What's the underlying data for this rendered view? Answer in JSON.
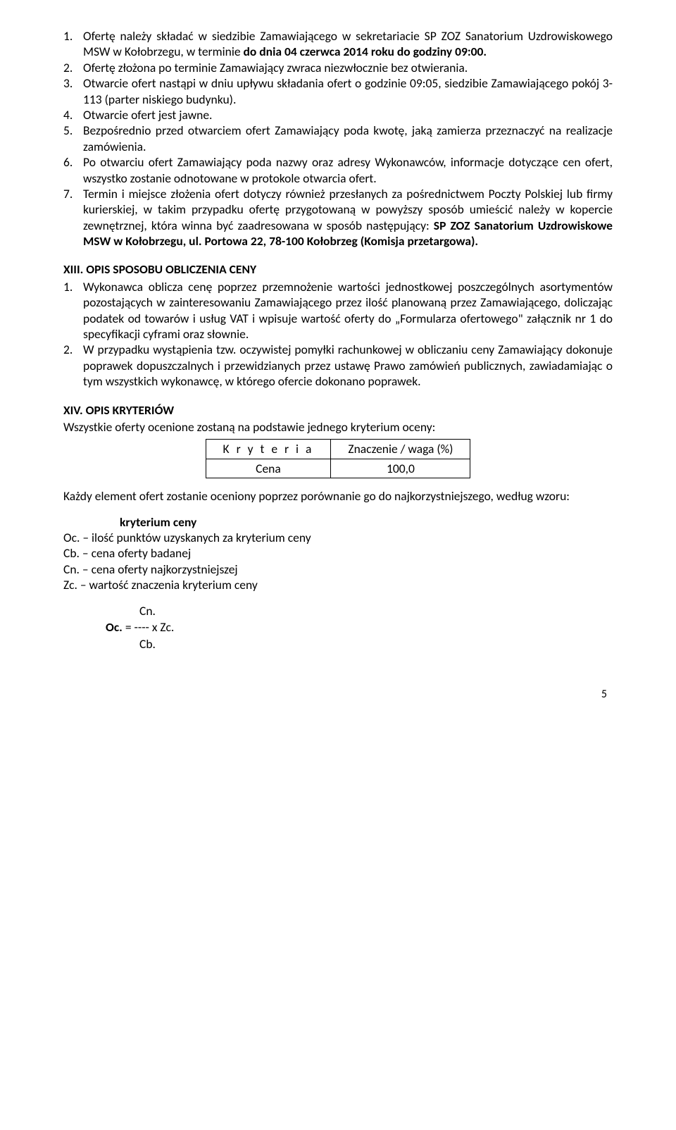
{
  "list1": {
    "items": [
      {
        "num": "1.",
        "html": "Ofertę należy składać w siedzibie Zamawiającego w sekretariacie SP ZOZ Sanatorium Uzdrowiskowego MSW w Kołobrzegu, w terminie <b>do dnia 04 czerwca 2014 roku do godziny 09:00.</b>"
      },
      {
        "num": "2.",
        "html": "Ofertę złożona po terminie Zamawiający zwraca niezwłocznie bez otwierania."
      },
      {
        "num": "3.",
        "html": "Otwarcie ofert nastąpi w dniu upływu składania ofert o godzinie 09:05, siedzibie Zamawiającego pokój 3-113 (parter niskiego budynku)."
      },
      {
        "num": "4.",
        "html": "Otwarcie ofert jest jawne."
      },
      {
        "num": "5.",
        "html": "Bezpośrednio przed otwarciem ofert Zamawiający poda kwotę, jaką zamierza przeznaczyć na realizacje zamówienia."
      },
      {
        "num": "6.",
        "html": "Po otwarciu ofert Zamawiający poda nazwy oraz adresy Wykonawców, informacje dotyczące cen ofert, wszystko zostanie odnotowane w protokole otwarcia ofert."
      },
      {
        "num": "7.",
        "html": "Termin i miejsce złożenia ofert dotyczy również przesłanych za pośrednictwem Poczty Polskiej lub firmy kurierskiej, w takim przypadku ofertę przygotowaną w powyższy sposób umieścić należy w kopercie zewnętrznej, która winna być zaadresowana w sposób następujący: <b>SP ZOZ Sanatorium Uzdrowiskowe MSW w Kołobrzegu, ul. Portowa 22, 78-100 Kołobrzeg (Komisja przetargowa).</b>"
      }
    ]
  },
  "section13": {
    "heading": "XIII. OPIS SPOSOBU OBLICZENIA CENY",
    "items": [
      {
        "num": "1.",
        "html": "Wykonawca oblicza cenę poprzez przemnożenie wartości jednostkowej poszczególnych asortymentów pozostających w zainteresowaniu Zamawiającego przez ilość planowaną przez Zamawiającego, doliczając podatek od towarów i usług VAT i wpisuje wartość oferty do „Formularza ofertowego\" załącznik nr 1 do specyfikacji cyframi oraz słownie."
      },
      {
        "num": "2.",
        "html": "W przypadku wystąpienia tzw. oczywistej pomyłki rachunkowej w obliczaniu ceny Zamawiający dokonuje poprawek dopuszczalnych i przewidzianych przez ustawę Prawo zamówień publicznych, zawiadamiając o tym wszystkich wykonawcę, w którego ofercie dokonano poprawek."
      }
    ]
  },
  "section14": {
    "heading": "XIV. OPIS KRYTERIÓW",
    "intro": "Wszystkie oferty ocenione zostaną na podstawie jednego kryterium oceny:",
    "table": {
      "header": [
        "K r y t e r i a",
        "Znaczenie / waga (%)"
      ],
      "row": [
        "Cena",
        "100,0"
      ]
    },
    "after_table": "Każdy element ofert zostanie oceniony poprzez porównanie go do najkorzystniejszego, według wzoru:",
    "sub_heading": "kryterium ceny",
    "lines": [
      "Oc. – ilość punktów uzyskanych za kryterium ceny",
      "Cb. – cena oferty badanej",
      "Cn. – cena oferty najkorzystniejszej",
      "Zc. – wartość znaczenia kryterium ceny"
    ],
    "formula": {
      "top": "Cn.",
      "mid_left": "Oc.",
      "mid_right": "= ---- x  Zc.",
      "bot": "Cb."
    }
  },
  "page_number": "5"
}
